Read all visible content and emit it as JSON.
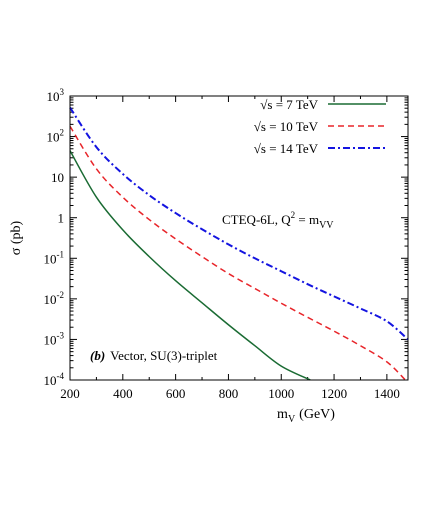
{
  "chart_data": {
    "type": "line",
    "xlabel": "m",
    "xlabel_sub": "V",
    "xlabel_unit": "(GeV)",
    "ylabel": "σ (pb)",
    "xlim": [
      200,
      1480
    ],
    "ylim": [
      0.0001,
      1000
    ],
    "yscale": "log",
    "x_ticks": [
      200,
      400,
      600,
      800,
      1000,
      1200,
      1400
    ],
    "y_ticks": [
      {
        "value": 0.0001,
        "label": "10",
        "exp": "-4"
      },
      {
        "value": 0.001,
        "label": "10",
        "exp": "-3"
      },
      {
        "value": 0.01,
        "label": "10",
        "exp": "-2"
      },
      {
        "value": 0.1,
        "label": "10",
        "exp": "-1"
      },
      {
        "value": 1,
        "label": "1",
        "exp": ""
      },
      {
        "value": 10,
        "label": "10",
        "exp": ""
      },
      {
        "value": 100,
        "label": "10",
        "exp": "2"
      },
      {
        "value": 1000,
        "label": "10",
        "exp": "3"
      }
    ],
    "legend_position": "top-right",
    "series": [
      {
        "name": "√s =  7 TeV",
        "color": "#1a6b33",
        "dash": "solid",
        "x": [
          200,
          300,
          400,
          500,
          600,
          700,
          800,
          900,
          1000,
          1110
        ],
        "y": [
          45,
          3.2,
          0.5,
          0.11,
          0.028,
          0.008,
          0.0023,
          0.0007,
          0.00022,
          0.0001
        ]
      },
      {
        "name": "√s = 10 TeV",
        "color": "#e8252a",
        "dash": "dashed",
        "x": [
          200,
          300,
          400,
          500,
          600,
          700,
          800,
          900,
          1000,
          1100,
          1200,
          1300,
          1400,
          1470
        ],
        "y": [
          180,
          16,
          3.2,
          0.9,
          0.3,
          0.11,
          0.042,
          0.018,
          0.0078,
          0.0035,
          0.0016,
          0.0007,
          0.00028,
          0.0001
        ]
      },
      {
        "name": "√s = 14 TeV",
        "color": "#1414e0",
        "dash": "dash-dot",
        "x": [
          200,
          300,
          400,
          500,
          600,
          700,
          800,
          900,
          1000,
          1100,
          1200,
          1300,
          1400,
          1480
        ],
        "y": [
          520,
          55,
          12,
          3.6,
          1.3,
          0.52,
          0.22,
          0.1,
          0.048,
          0.023,
          0.0115,
          0.0058,
          0.0028,
          0.001
        ]
      }
    ],
    "annotations": {
      "pdf_label": "CTEQ-6L, Q",
      "pdf_sup": "2",
      "pdf_eq": " = m",
      "pdf_sub": "VV",
      "panel_tag": "(b)",
      "panel_text": "Vector, SU(3)-triplet"
    }
  }
}
